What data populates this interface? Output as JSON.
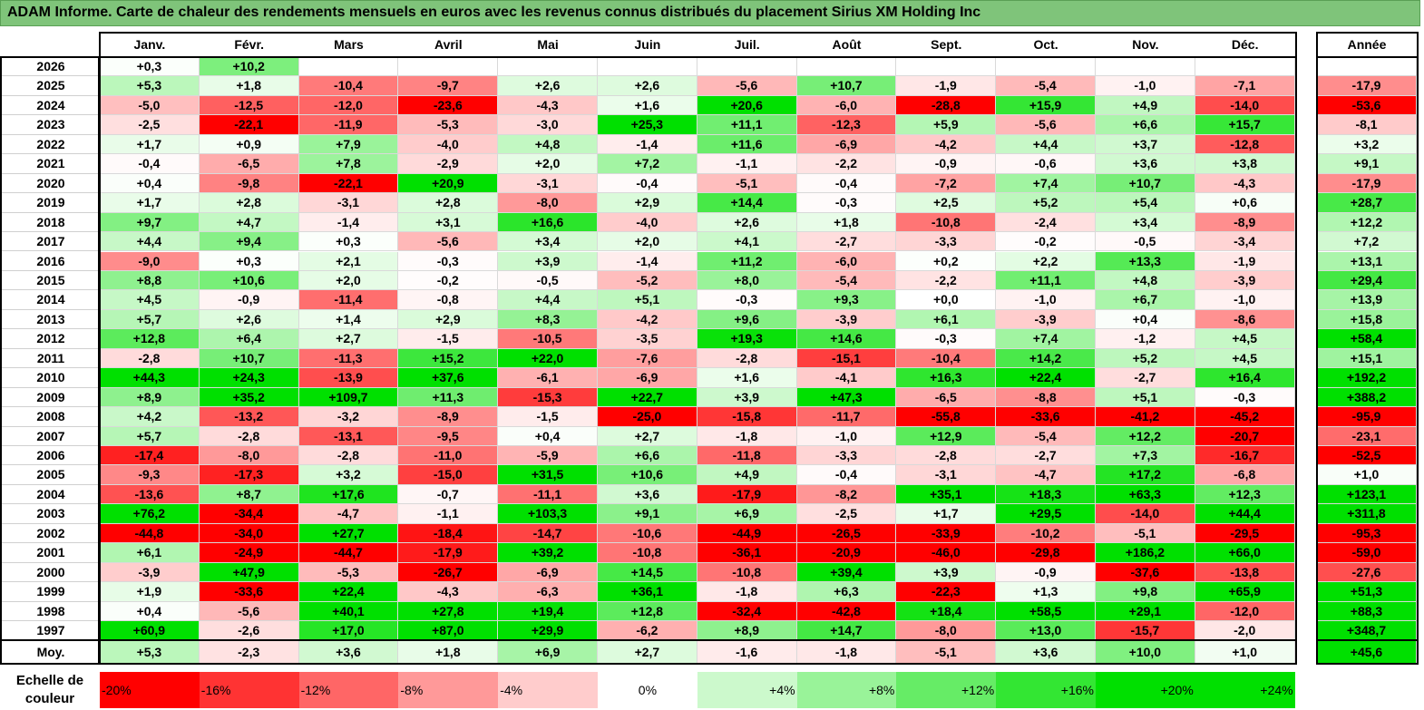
{
  "title": "ADAM Informe. Carte de chaleur des rendements mensuels en euros avec les revenus connus distribués du placement Sirius XM Holding Inc",
  "chart_data": {
    "type": "heatmap",
    "months": [
      "Janv.",
      "Févr.",
      "Mars",
      "Avril",
      "Mai",
      "Juin",
      "Juil.",
      "Août",
      "Sept.",
      "Oct.",
      "Nov.",
      "Déc."
    ],
    "year_header": "Année",
    "avg_label": "Moy.",
    "rows": [
      {
        "year": "2026",
        "values": [
          "+0,3",
          "+10,2",
          null,
          null,
          null,
          null,
          null,
          null,
          null,
          null,
          null,
          null
        ],
        "annual": null
      },
      {
        "year": "2025",
        "values": [
          "+5,3",
          "+1,8",
          "-10,4",
          "-9,7",
          "+2,6",
          "+2,6",
          "-5,6",
          "+10,7",
          "-1,9",
          "-5,4",
          "-1,0",
          "-7,1"
        ],
        "annual": "-17,9"
      },
      {
        "year": "2024",
        "values": [
          "-5,0",
          "-12,5",
          "-12,0",
          "-23,6",
          "-4,3",
          "+1,6",
          "+20,6",
          "-6,0",
          "-28,8",
          "+15,9",
          "+4,9",
          "-14,0"
        ],
        "annual": "-53,6"
      },
      {
        "year": "2023",
        "values": [
          "-2,5",
          "-22,1",
          "-11,9",
          "-5,3",
          "-3,0",
          "+25,3",
          "+11,1",
          "-12,3",
          "+5,9",
          "-5,6",
          "+6,6",
          "+15,7"
        ],
        "annual": "-8,1"
      },
      {
        "year": "2022",
        "values": [
          "+1,7",
          "+0,9",
          "+7,9",
          "-4,0",
          "+4,8",
          "-1,4",
          "+11,6",
          "-6,9",
          "-4,2",
          "+4,4",
          "+3,7",
          "-12,8"
        ],
        "annual": "+3,2"
      },
      {
        "year": "2021",
        "values": [
          "-0,4",
          "-6,5",
          "+7,8",
          "-2,9",
          "+2,0",
          "+7,2",
          "-1,1",
          "-2,2",
          "-0,9",
          "-0,6",
          "+3,6",
          "+3,8"
        ],
        "annual": "+9,1"
      },
      {
        "year": "2020",
        "values": [
          "+0,4",
          "-9,8",
          "-22,1",
          "+20,9",
          "-3,1",
          "-0,4",
          "-5,1",
          "-0,4",
          "-7,2",
          "+7,4",
          "+10,7",
          "-4,3"
        ],
        "annual": "-17,9"
      },
      {
        "year": "2019",
        "values": [
          "+1,7",
          "+2,8",
          "-3,1",
          "+2,8",
          "-8,0",
          "+2,9",
          "+14,4",
          "-0,3",
          "+2,5",
          "+5,2",
          "+5,4",
          "+0,6"
        ],
        "annual": "+28,7"
      },
      {
        "year": "2018",
        "values": [
          "+9,7",
          "+4,7",
          "-1,4",
          "+3,1",
          "+16,6",
          "-4,0",
          "+2,6",
          "+1,8",
          "-10,8",
          "-2,4",
          "+3,4",
          "-8,9"
        ],
        "annual": "+12,2"
      },
      {
        "year": "2017",
        "values": [
          "+4,4",
          "+9,4",
          "+0,3",
          "-5,6",
          "+3,4",
          "+2,0",
          "+4,1",
          "-2,7",
          "-3,3",
          "-0,2",
          "-0,5",
          "-3,4"
        ],
        "annual": "+7,2"
      },
      {
        "year": "2016",
        "values": [
          "-9,0",
          "+0,3",
          "+2,1",
          "-0,3",
          "+3,9",
          "-1,4",
          "+11,2",
          "-6,0",
          "+0,2",
          "+2,2",
          "+13,3",
          "-1,9"
        ],
        "annual": "+13,1"
      },
      {
        "year": "2015",
        "values": [
          "+8,8",
          "+10,6",
          "+2,0",
          "-0,2",
          "-0,5",
          "-5,2",
          "+8,0",
          "-5,4",
          "-2,2",
          "+11,1",
          "+4,8",
          "-3,9"
        ],
        "annual": "+29,4"
      },
      {
        "year": "2014",
        "values": [
          "+4,5",
          "-0,9",
          "-11,4",
          "-0,8",
          "+4,4",
          "+5,1",
          "-0,3",
          "+9,3",
          "+0,0",
          "-1,0",
          "+6,7",
          "-1,0"
        ],
        "annual": "+13,9"
      },
      {
        "year": "2013",
        "values": [
          "+5,7",
          "+2,6",
          "+1,4",
          "+2,9",
          "+8,3",
          "-4,2",
          "+9,6",
          "-3,9",
          "+6,1",
          "-3,9",
          "+0,4",
          "-8,6"
        ],
        "annual": "+15,8"
      },
      {
        "year": "2012",
        "values": [
          "+12,8",
          "+6,4",
          "+2,7",
          "-1,5",
          "-10,5",
          "-3,5",
          "+19,3",
          "+14,6",
          "-0,3",
          "+7,4",
          "-1,2",
          "+4,5"
        ],
        "annual": "+58,4"
      },
      {
        "year": "2011",
        "values": [
          "-2,8",
          "+10,7",
          "-11,3",
          "+15,2",
          "+22,0",
          "-7,6",
          "-2,8",
          "-15,1",
          "-10,4",
          "+14,2",
          "+5,2",
          "+4,5"
        ],
        "annual": "+15,1"
      },
      {
        "year": "2010",
        "values": [
          "+44,3",
          "+24,3",
          "-13,9",
          "+37,6",
          "-6,1",
          "-6,9",
          "+1,6",
          "-4,1",
          "+16,3",
          "+22,4",
          "-2,7",
          "+16,4"
        ],
        "annual": "+192,2"
      },
      {
        "year": "2009",
        "values": [
          "+8,9",
          "+35,2",
          "+109,7",
          "+11,3",
          "-15,3",
          "+22,7",
          "+3,9",
          "+47,3",
          "-6,5",
          "-8,8",
          "+5,1",
          "-0,3"
        ],
        "annual": "+388,2"
      },
      {
        "year": "2008",
        "values": [
          "+4,2",
          "-13,2",
          "-3,2",
          "-8,9",
          "-1,5",
          "-25,0",
          "-15,8",
          "-11,7",
          "-55,8",
          "-33,6",
          "-41,2",
          "-45,2"
        ],
        "annual": "-95,9"
      },
      {
        "year": "2007",
        "values": [
          "+5,7",
          "-2,8",
          "-13,1",
          "-9,5",
          "+0,4",
          "+2,7",
          "-1,8",
          "-1,0",
          "+12,9",
          "-5,4",
          "+12,2",
          "-20,7"
        ],
        "annual": "-23,1"
      },
      {
        "year": "2006",
        "values": [
          "-17,4",
          "-8,0",
          "-2,8",
          "-11,0",
          "-5,9",
          "+6,6",
          "-11,8",
          "-3,3",
          "-2,8",
          "-2,7",
          "+7,3",
          "-16,7"
        ],
        "annual": "-52,5"
      },
      {
        "year": "2005",
        "values": [
          "-9,3",
          "-17,3",
          "+3,2",
          "-15,0",
          "+31,5",
          "+10,6",
          "+4,9",
          "-0,4",
          "-3,1",
          "-4,7",
          "+17,2",
          "-6,8"
        ],
        "annual": "+1,0"
      },
      {
        "year": "2004",
        "values": [
          "-13,6",
          "+8,7",
          "+17,6",
          "-0,7",
          "-11,1",
          "+3,6",
          "-17,9",
          "-8,2",
          "+35,1",
          "+18,3",
          "+63,3",
          "+12,3"
        ],
        "annual": "+123,1"
      },
      {
        "year": "2003",
        "values": [
          "+76,2",
          "-34,4",
          "-4,7",
          "-1,1",
          "+103,3",
          "+9,1",
          "+6,9",
          "-2,5",
          "+1,7",
          "+29,5",
          "-14,0",
          "+44,4"
        ],
        "annual": "+311,8"
      },
      {
        "year": "2002",
        "values": [
          "-44,8",
          "-34,0",
          "+27,7",
          "-18,4",
          "-14,7",
          "-10,6",
          "-44,9",
          "-26,5",
          "-33,9",
          "-10,2",
          "-5,1",
          "-29,5"
        ],
        "annual": "-95,3"
      },
      {
        "year": "2001",
        "values": [
          "+6,1",
          "-24,9",
          "-44,7",
          "-17,9",
          "+39,2",
          "-10,8",
          "-36,1",
          "-20,9",
          "-46,0",
          "-29,8",
          "+186,2",
          "+66,0"
        ],
        "annual": "-59,0"
      },
      {
        "year": "2000",
        "values": [
          "-3,9",
          "+47,9",
          "-5,3",
          "-26,7",
          "-6,9",
          "+14,5",
          "-10,8",
          "+39,4",
          "+3,9",
          "-0,9",
          "-37,6",
          "-13,8"
        ],
        "annual": "-27,6"
      },
      {
        "year": "1999",
        "values": [
          "+1,9",
          "-33,6",
          "+22,4",
          "-4,3",
          "-6,3",
          "+36,1",
          "-1,8",
          "+6,3",
          "-22,3",
          "+1,3",
          "+9,8",
          "+65,9"
        ],
        "annual": "+51,3"
      },
      {
        "year": "1998",
        "values": [
          "+0,4",
          "-5,6",
          "+40,1",
          "+27,8",
          "+19,4",
          "+12,8",
          "-32,4",
          "-42,8",
          "+18,4",
          "+58,5",
          "+29,1",
          "-12,0"
        ],
        "annual": "+88,3"
      },
      {
        "year": "1997",
        "values": [
          "+60,9",
          "-2,6",
          "+17,0",
          "+87,0",
          "+29,9",
          "-6,2",
          "+8,9",
          "+14,7",
          "-8,0",
          "+13,0",
          "-15,7",
          "-2,0"
        ],
        "annual": "+348,7"
      }
    ],
    "averages": [
      "+5,3",
      "-2,3",
      "+3,6",
      "+1,8",
      "+6,9",
      "+2,7",
      "-1,6",
      "-1,8",
      "-5,1",
      "+3,6",
      "+10,0",
      "+1,0"
    ],
    "average_annual": "+45,6",
    "color_scale": {
      "label": "Echelle de couleur",
      "steps": [
        "-20%",
        "-16%",
        "-12%",
        "-8%",
        "-4%",
        "0%",
        "+4%",
        "+8%",
        "+12%",
        "+16%",
        "+20%",
        "+24%"
      ]
    },
    "colors": {
      "strong_negative": "#ff0000",
      "neutral": "#ffffff",
      "strong_positive": "#00e000",
      "title_background": "#7fc47a"
    }
  }
}
